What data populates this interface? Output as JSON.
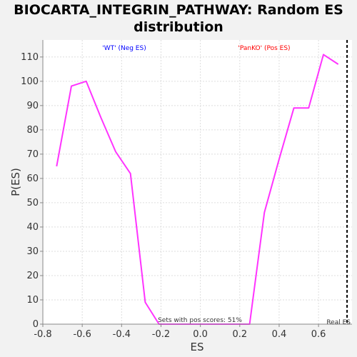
{
  "chart_data": {
    "type": "line",
    "title_lines": [
      "BIOCARTA_INTEGRIN_PATHWAY: Random ES",
      "distribution"
    ],
    "xlabel": "ES",
    "ylabel": "P(ES)",
    "xlim": [
      -0.8,
      0.77
    ],
    "ylim": [
      0,
      117
    ],
    "xticks": [
      "-0.8",
      "-0.6",
      "-0.4",
      "-0.2",
      "0.0",
      "0.2",
      "0.4",
      "0.6"
    ],
    "xtick_values": [
      -0.8,
      -0.6,
      -0.4,
      -0.2,
      0.0,
      0.2,
      0.4,
      0.6
    ],
    "yticks": [
      "0",
      "10",
      "20",
      "30",
      "40",
      "50",
      "60",
      "70",
      "80",
      "90",
      "100",
      "110"
    ],
    "ytick_values": [
      0,
      10,
      20,
      30,
      40,
      50,
      60,
      70,
      80,
      90,
      100,
      110
    ],
    "grid": true,
    "series": [
      {
        "color": "#ff33ff",
        "x": [
          -0.73,
          -0.655,
          -0.58,
          -0.505,
          -0.43,
          -0.355,
          -0.28,
          -0.21,
          0.25,
          0.325,
          0.4,
          0.475,
          0.55,
          0.625,
          0.7
        ],
        "y": [
          65,
          98,
          100,
          85,
          71,
          62,
          9,
          0,
          0,
          46,
          68,
          89,
          89,
          111,
          107
        ]
      }
    ],
    "real_es": 0.745,
    "annotations": {
      "neg_label": "'WT' (Neg ES)",
      "neg_color": "#0000ff",
      "pos_label": "'PanKO' (Pos ES)",
      "pos_color": "#ff0000",
      "pos_scores_text": "Sets with pos scores: 51%",
      "real_es_label": "Real ES"
    }
  }
}
